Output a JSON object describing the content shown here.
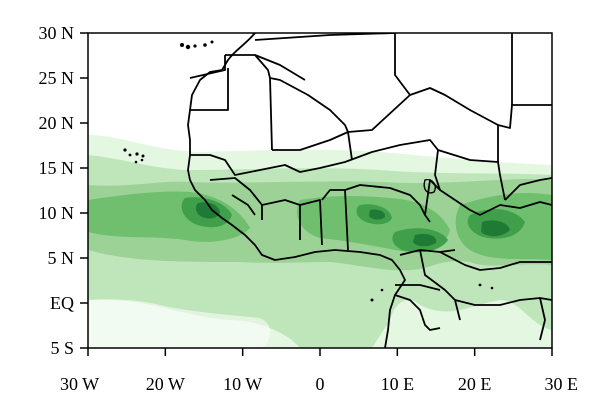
{
  "map": {
    "axes": {
      "lon_range": [
        -30,
        30
      ],
      "lat_range": [
        -5,
        30
      ],
      "x_ticks": [
        {
          "value": -30,
          "label": "30 W"
        },
        {
          "value": -20,
          "label": "20 W"
        },
        {
          "value": -10,
          "label": "10 W"
        },
        {
          "value": 0,
          "label": "0"
        },
        {
          "value": 10,
          "label": "10 E"
        },
        {
          "value": 20,
          "label": "20 E"
        },
        {
          "value": 30,
          "label": "30 E"
        }
      ],
      "y_ticks": [
        {
          "value": 30,
          "label": "30 N"
        },
        {
          "value": 25,
          "label": "25 N"
        },
        {
          "value": 20,
          "label": "20 N"
        },
        {
          "value": 15,
          "label": "15 N"
        },
        {
          "value": 10,
          "label": "10 N"
        },
        {
          "value": 5,
          "label": "5 N"
        },
        {
          "value": 0,
          "label": "EQ"
        },
        {
          "value": -5,
          "label": "5 S"
        }
      ]
    },
    "colors": {
      "level1": "#e3f7e1",
      "level2": "#bfe6bb",
      "level3": "#9dd297",
      "level4": "#6fbf6f",
      "level5": "#3f9f4a",
      "level6": "#1f7a35",
      "border": "#000000",
      "frame": "#000000"
    }
  }
}
